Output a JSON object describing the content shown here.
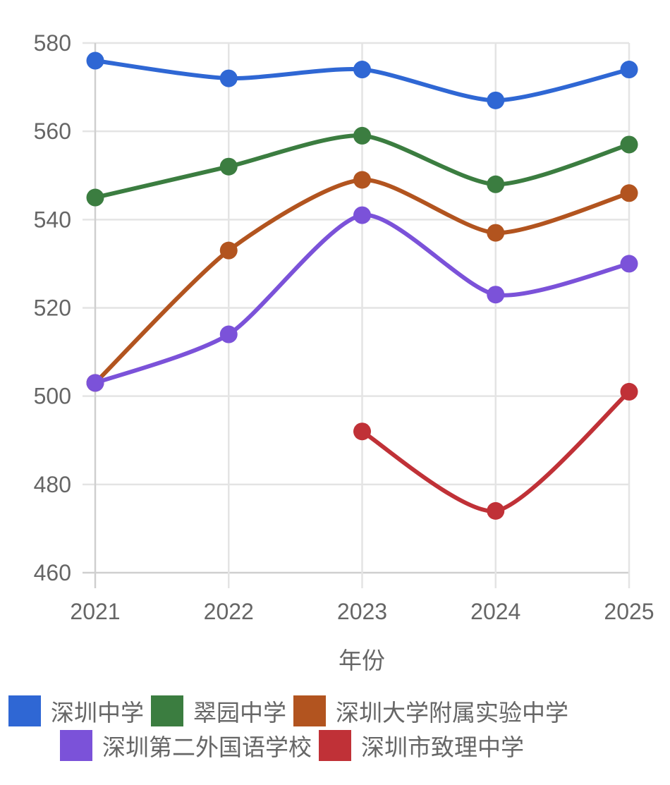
{
  "chart_data": {
    "type": "line",
    "title": "",
    "xlabel": "年份",
    "ylabel": "",
    "x": [
      "2021",
      "2022",
      "2023",
      "2024",
      "2025"
    ],
    "ylim": [
      460,
      580
    ],
    "yticks": [
      460,
      480,
      500,
      520,
      540,
      560,
      580
    ],
    "grid": true,
    "legend_position": "bottom",
    "series": [
      {
        "name": "深圳中学",
        "color": "#2f67d4",
        "values": [
          576,
          572,
          574,
          567,
          574
        ]
      },
      {
        "name": "翠园中学",
        "color": "#3b7d40",
        "values": [
          545,
          552,
          559,
          548,
          557
        ]
      },
      {
        "name": "深圳大学附属实验中学",
        "color": "#b2541f",
        "values": [
          503,
          533,
          549,
          537,
          546
        ]
      },
      {
        "name": "深圳第二外国语学校",
        "color": "#7b52d9",
        "values": [
          503,
          514,
          541,
          523,
          530
        ]
      },
      {
        "name": "深圳市致理中学",
        "color": "#c03137",
        "values": [
          null,
          null,
          492,
          474,
          501
        ]
      }
    ]
  },
  "legend": {
    "rows": [
      [
        0,
        1,
        2
      ],
      [
        3,
        4
      ]
    ]
  }
}
